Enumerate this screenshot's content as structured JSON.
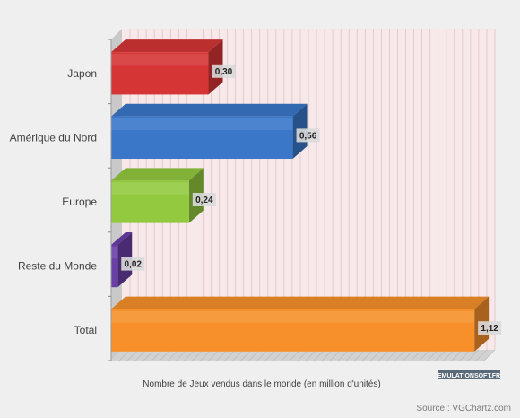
{
  "chart_data": {
    "type": "bar",
    "orientation": "horizontal",
    "categories": [
      "Japon",
      "Amérique du Nord",
      "Europe",
      "Reste du Monde",
      "Total"
    ],
    "values": [
      0.3,
      0.56,
      0.24,
      0.02,
      1.12
    ],
    "value_labels": [
      "0,30",
      "0,56",
      "0,24",
      "0,02",
      "1,12"
    ],
    "xlabel": "Nombre de Jeux vendus dans le monde (en million d'unités)",
    "xlim": [
      0,
      1.15
    ],
    "grid": true,
    "legend": "none",
    "colors": [
      "#d63535",
      "#3a77c9",
      "#93c93f",
      "#6b3fa8",
      "#f7902a"
    ]
  },
  "watermark": "EMULATIONSOFT.FR",
  "source": "Source : VGChartz.com"
}
